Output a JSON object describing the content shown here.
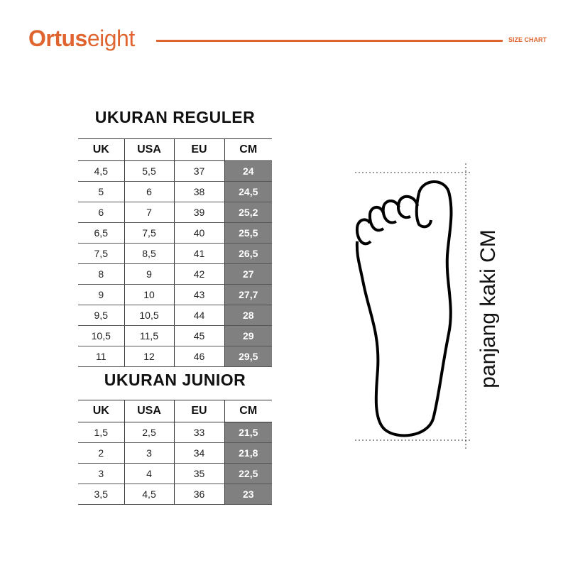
{
  "header": {
    "brand_bold": "Ortus",
    "brand_light": "eight",
    "section_label": "SIZE CHART",
    "accent_color": "#e0642f"
  },
  "columns": [
    "UK",
    "USA",
    "EU",
    "CM"
  ],
  "regular": {
    "title": "UKURAN REGULER",
    "rows": [
      [
        "4,5",
        "5,5",
        "37",
        "24"
      ],
      [
        "5",
        "6",
        "38",
        "24,5"
      ],
      [
        "6",
        "7",
        "39",
        "25,2"
      ],
      [
        "6,5",
        "7,5",
        "40",
        "25,5"
      ],
      [
        "7,5",
        "8,5",
        "41",
        "26,5"
      ],
      [
        "8",
        "9",
        "42",
        "27"
      ],
      [
        "9",
        "10",
        "43",
        "27,7"
      ],
      [
        "9,5",
        "10,5",
        "44",
        "28"
      ],
      [
        "10,5",
        "11,5",
        "45",
        "29"
      ],
      [
        "11",
        "12",
        "46",
        "29,5"
      ]
    ]
  },
  "junior": {
    "title": "UKURAN JUNIOR",
    "rows": [
      [
        "1,5",
        "2,5",
        "33",
        "21,5"
      ],
      [
        "2",
        "3",
        "34",
        "21,8"
      ],
      [
        "3",
        "4",
        "35",
        "22,5"
      ],
      [
        "3,5",
        "4,5",
        "36",
        "23"
      ]
    ]
  },
  "diagram": {
    "label": "panjang kaki CM",
    "icon": "foot-outline-icon",
    "cm_fill_color": "#808080"
  }
}
